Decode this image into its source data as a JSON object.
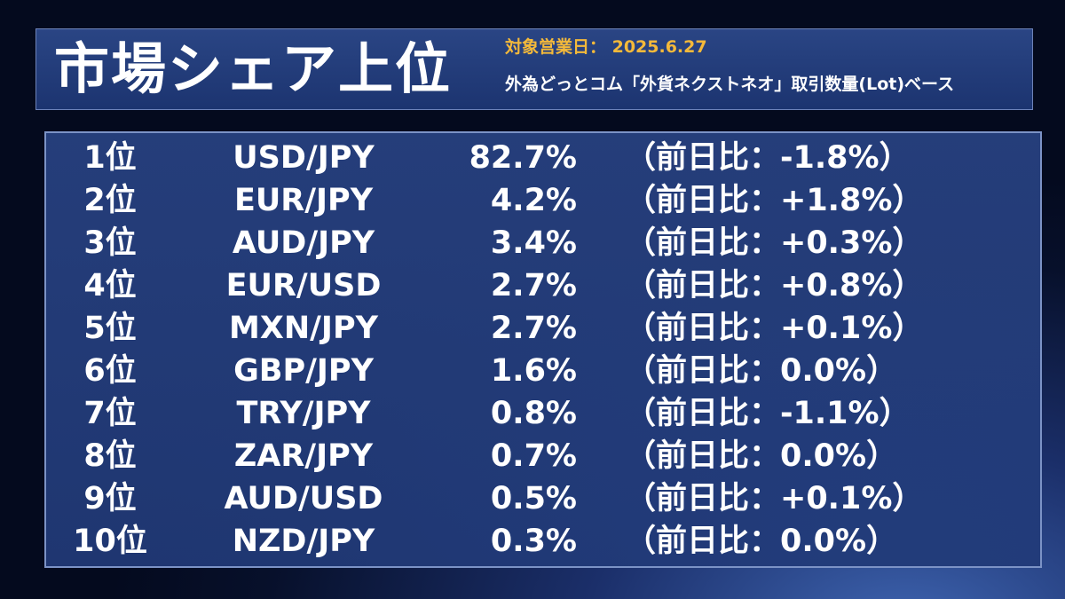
{
  "header": {
    "title": "市場シェア上位",
    "date_line": "対象営業日： 2025.6.27",
    "basis_line": "外為どっとコム「外貨ネクストネオ」取引数量(Lot)ベース"
  },
  "rows": [
    {
      "rank": "1位",
      "pair": "USD/JPY",
      "share": "82.7%",
      "change": "（前日比：-1.8%）"
    },
    {
      "rank": "2位",
      "pair": "EUR/JPY",
      "share": "4.2%",
      "change": "（前日比：+1.8%）"
    },
    {
      "rank": "3位",
      "pair": "AUD/JPY",
      "share": "3.4%",
      "change": "（前日比：+0.3%）"
    },
    {
      "rank": "4位",
      "pair": "EUR/USD",
      "share": "2.7%",
      "change": "（前日比：+0.8%）"
    },
    {
      "rank": "5位",
      "pair": "MXN/JPY",
      "share": "2.7%",
      "change": "（前日比：+0.1%）"
    },
    {
      "rank": "6位",
      "pair": "GBP/JPY",
      "share": "1.6%",
      "change": "（前日比：0.0%）"
    },
    {
      "rank": "7位",
      "pair": "TRY/JPY",
      "share": "0.8%",
      "change": "（前日比：-1.1%）"
    },
    {
      "rank": "8位",
      "pair": "ZAR/JPY",
      "share": "0.7%",
      "change": "（前日比：0.0%）"
    },
    {
      "rank": "9位",
      "pair": "AUD/USD",
      "share": "0.5%",
      "change": "（前日比：+0.1%）"
    },
    {
      "rank": "10位",
      "pair": "NZD/JPY",
      "share": "0.3%",
      "change": "（前日比：0.0%）"
    }
  ],
  "colors": {
    "accent": "#f4b93a",
    "panel": "#1c3470",
    "border": "#7c93c6"
  }
}
